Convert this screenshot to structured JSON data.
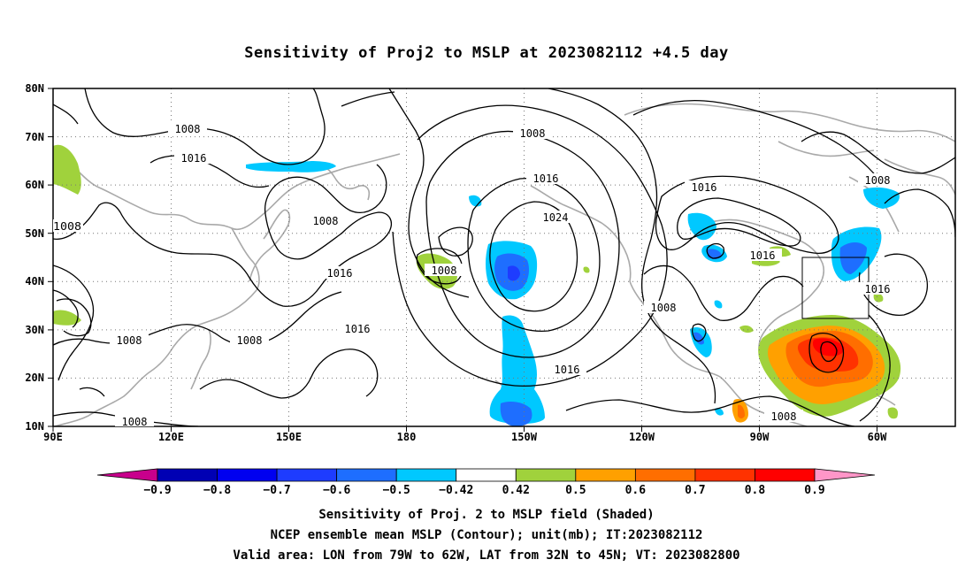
{
  "title": "Sensitivity of Proj2 to MSLP at 2023082112 +4.5 day",
  "lat_ticks": [
    "80N",
    "70N",
    "60N",
    "50N",
    "40N",
    "30N",
    "20N",
    "10N"
  ],
  "lon_ticks": [
    "90E",
    "120E",
    "150E",
    "180",
    "150W",
    "120W",
    "90W",
    "60W"
  ],
  "contour_labels": [
    "1008",
    "1016",
    "1008",
    "1008",
    "1016",
    "1016",
    "1008",
    "1008",
    "1008",
    "1008",
    "1016",
    "1024",
    "1008",
    "1016",
    "1008",
    "1016",
    "1016",
    "1008",
    "1016",
    "1008",
    "1008"
  ],
  "colorbar": {
    "labels": [
      "-0.9",
      "-0.8",
      "-0.7",
      "-0.6",
      "-0.5",
      "-0.42",
      "0.42",
      "0.5",
      "0.6",
      "0.7",
      "0.8",
      "0.9"
    ],
    "colors": [
      "#0000b4",
      "#0000f0",
      "#1e3cff",
      "#1e6eff",
      "#00c8ff",
      "#ffffff",
      "#a0d23c",
      "#ffa000",
      "#ff6e00",
      "#ff3200",
      "#ff0000"
    ],
    "low_end_color": "#c8008c",
    "high_end_color": "#ff96c8"
  },
  "captions": {
    "line1": "Sensitivity of Proj. 2 to MSLP field (Shaded)",
    "line2": "NCEP ensemble mean MSLP (Contour); unit(mb); IT:2023082112",
    "line3": "Valid area: LON from 79W to 62W, LAT from 32N to 45N; VT: 2023082800"
  }
}
